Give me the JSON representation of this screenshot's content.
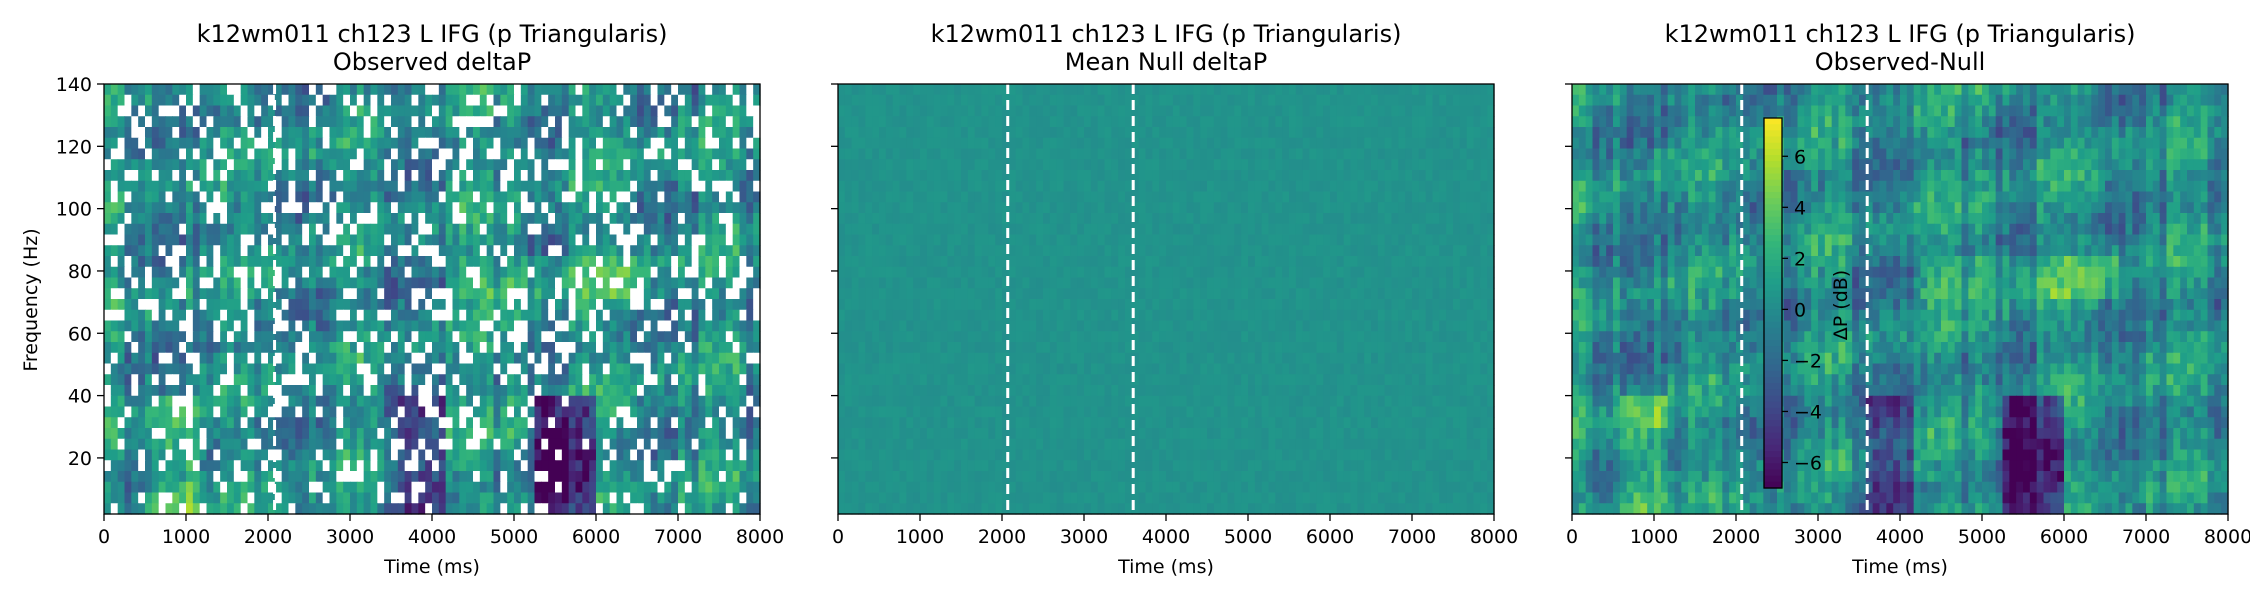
{
  "figure": {
    "background": "#ffffff"
  },
  "chart_data": [
    {
      "type": "heatmap",
      "title": "k12wm011 ch123 L IFG (p Triangularis)",
      "subtitle": "Observed deltaP",
      "xlabel": "Time (ms)",
      "ylabel": "Frequency (Hz)",
      "xlim": [
        0,
        8000
      ],
      "ylim": [
        2,
        140
      ],
      "xticks": [
        0,
        1000,
        2000,
        3000,
        4000,
        5000,
        6000,
        7000,
        8000
      ],
      "yticks": [
        20,
        40,
        60,
        80,
        100,
        120,
        140
      ],
      "show_y_ticklabels": true,
      "event_lines_ms": [
        2080
      ],
      "event_line_color": "#ffffff",
      "masked_color": "#ffffff",
      "colormap": "viridis",
      "clim": [
        -7,
        7.5
      ]
    },
    {
      "type": "heatmap",
      "title": "k12wm011 ch123 L IFG (p Triangularis)",
      "subtitle": "Mean Null deltaP",
      "xlabel": "Time (ms)",
      "ylabel": "",
      "xlim": [
        0,
        8000
      ],
      "ylim": [
        2,
        140
      ],
      "xticks": [
        0,
        1000,
        2000,
        3000,
        4000,
        5000,
        6000,
        7000,
        8000
      ],
      "yticks": [
        20,
        40,
        60,
        80,
        100,
        120,
        140
      ],
      "show_y_ticklabels": false,
      "event_lines_ms": [
        2070,
        3600
      ],
      "event_line_color": "#ffffff",
      "colormap": "viridis",
      "clim": [
        -7,
        7.5
      ]
    },
    {
      "type": "heatmap",
      "title": "k12wm011 ch123 L IFG (p Triangularis)",
      "subtitle": "Observed-Null",
      "xlabel": "Time (ms)",
      "ylabel": "",
      "xlim": [
        0,
        8000
      ],
      "ylim": [
        2,
        140
      ],
      "xticks": [
        0,
        1000,
        2000,
        3000,
        4000,
        5000,
        6000,
        7000,
        8000
      ],
      "yticks": [
        20,
        40,
        60,
        80,
        100,
        120,
        140
      ],
      "show_y_ticklabels": false,
      "event_lines_ms": [
        2070,
        3600
      ],
      "event_line_color": "#ffffff",
      "colormap": "viridis",
      "clim": [
        -7,
        7.5
      ],
      "colorbar": {
        "label": "ΔP (dB)",
        "ticks": [
          -6,
          -4,
          -2,
          0,
          2,
          4,
          6
        ],
        "range": [
          -7,
          7.5
        ]
      }
    }
  ]
}
